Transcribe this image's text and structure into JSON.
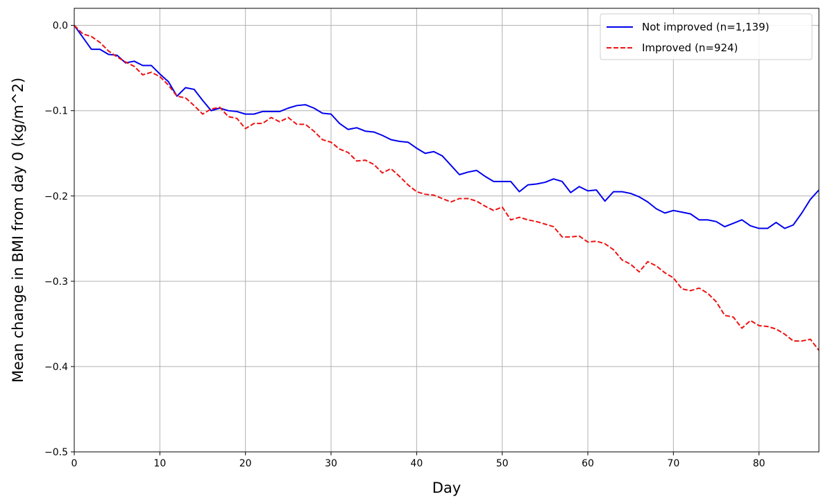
{
  "chart_data": {
    "type": "line",
    "title": "",
    "xlabel": "Day",
    "ylabel": "Mean change in BMI from day 0 (kg/m^2)",
    "xlim": [
      0,
      87
    ],
    "ylim": [
      -0.5,
      0.02
    ],
    "xticks": [
      0,
      10,
      20,
      30,
      40,
      50,
      60,
      70,
      80
    ],
    "xtick_labels": [
      "0",
      "10",
      "20",
      "30",
      "40",
      "50",
      "60",
      "70",
      "80"
    ],
    "yticks": [
      0.0,
      -0.1,
      -0.2,
      -0.3,
      -0.4,
      -0.5
    ],
    "ytick_labels": [
      "0.0",
      "−0.1",
      "−0.2",
      "−0.3",
      "−0.4",
      "−0.5"
    ],
    "grid": true,
    "legend_position": "top-right",
    "x": [
      0,
      1,
      2,
      3,
      4,
      5,
      6,
      7,
      8,
      9,
      10,
      11,
      12,
      13,
      14,
      15,
      16,
      17,
      18,
      19,
      20,
      21,
      22,
      23,
      24,
      25,
      26,
      27,
      28,
      29,
      30,
      31,
      32,
      33,
      34,
      35,
      36,
      37,
      38,
      39,
      40,
      41,
      42,
      43,
      44,
      45,
      46,
      47,
      48,
      49,
      50,
      51,
      52,
      53,
      54,
      55,
      56,
      57,
      58,
      59,
      60,
      61,
      62,
      63,
      64,
      65,
      66,
      67,
      68,
      69,
      70,
      71,
      72,
      73,
      74,
      75,
      76,
      77,
      78,
      79,
      80,
      81,
      82,
      83,
      84,
      85,
      86,
      87
    ],
    "series": [
      {
        "name": "Not improved (n=1,139)",
        "color": "#0000ee",
        "style": "solid",
        "values": [
          0.0,
          -0.014,
          -0.028,
          -0.028,
          -0.034,
          -0.035,
          -0.044,
          -0.042,
          -0.047,
          -0.047,
          -0.057,
          -0.066,
          -0.083,
          -0.073,
          -0.075,
          -0.088,
          -0.1,
          -0.097,
          -0.1,
          -0.101,
          -0.104,
          -0.104,
          -0.101,
          -0.101,
          -0.101,
          -0.097,
          -0.094,
          -0.093,
          -0.097,
          -0.103,
          -0.104,
          -0.115,
          -0.122,
          -0.12,
          -0.124,
          -0.125,
          -0.129,
          -0.134,
          -0.136,
          -0.137,
          -0.144,
          -0.15,
          -0.148,
          -0.153,
          -0.164,
          -0.175,
          -0.172,
          -0.17,
          -0.177,
          -0.183,
          -0.183,
          -0.183,
          -0.195,
          -0.187,
          -0.186,
          -0.184,
          -0.18,
          -0.183,
          -0.196,
          -0.189,
          -0.194,
          -0.193,
          -0.206,
          -0.195,
          -0.195,
          -0.197,
          -0.201,
          -0.207,
          -0.215,
          -0.22,
          -0.217,
          -0.219,
          -0.221,
          -0.228,
          -0.228,
          -0.23,
          -0.236,
          -0.232,
          -0.228,
          -0.235,
          -0.238,
          -0.238,
          -0.231,
          -0.238,
          -0.234,
          -0.22,
          -0.204,
          -0.193
        ]
      },
      {
        "name": "Improved (n=924)",
        "color": "#ee1111",
        "style": "dashed",
        "values": [
          0.0,
          -0.01,
          -0.013,
          -0.02,
          -0.03,
          -0.037,
          -0.043,
          -0.048,
          -0.058,
          -0.055,
          -0.06,
          -0.07,
          -0.083,
          -0.085,
          -0.094,
          -0.104,
          -0.098,
          -0.096,
          -0.107,
          -0.109,
          -0.121,
          -0.115,
          -0.115,
          -0.108,
          -0.113,
          -0.108,
          -0.116,
          -0.116,
          -0.124,
          -0.134,
          -0.137,
          -0.145,
          -0.149,
          -0.159,
          -0.158,
          -0.163,
          -0.173,
          -0.168,
          -0.177,
          -0.187,
          -0.195,
          -0.198,
          -0.199,
          -0.203,
          -0.207,
          -0.203,
          -0.203,
          -0.206,
          -0.212,
          -0.217,
          -0.213,
          -0.228,
          -0.225,
          -0.228,
          -0.23,
          -0.233,
          -0.236,
          -0.248,
          -0.248,
          -0.247,
          -0.254,
          -0.253,
          -0.256,
          -0.263,
          -0.275,
          -0.28,
          -0.289,
          -0.277,
          -0.282,
          -0.29,
          -0.296,
          -0.309,
          -0.311,
          -0.308,
          -0.314,
          -0.324,
          -0.34,
          -0.342,
          -0.355,
          -0.346,
          -0.352,
          -0.353,
          -0.356,
          -0.362,
          -0.37,
          -0.37,
          -0.368,
          -0.381
        ]
      }
    ]
  }
}
